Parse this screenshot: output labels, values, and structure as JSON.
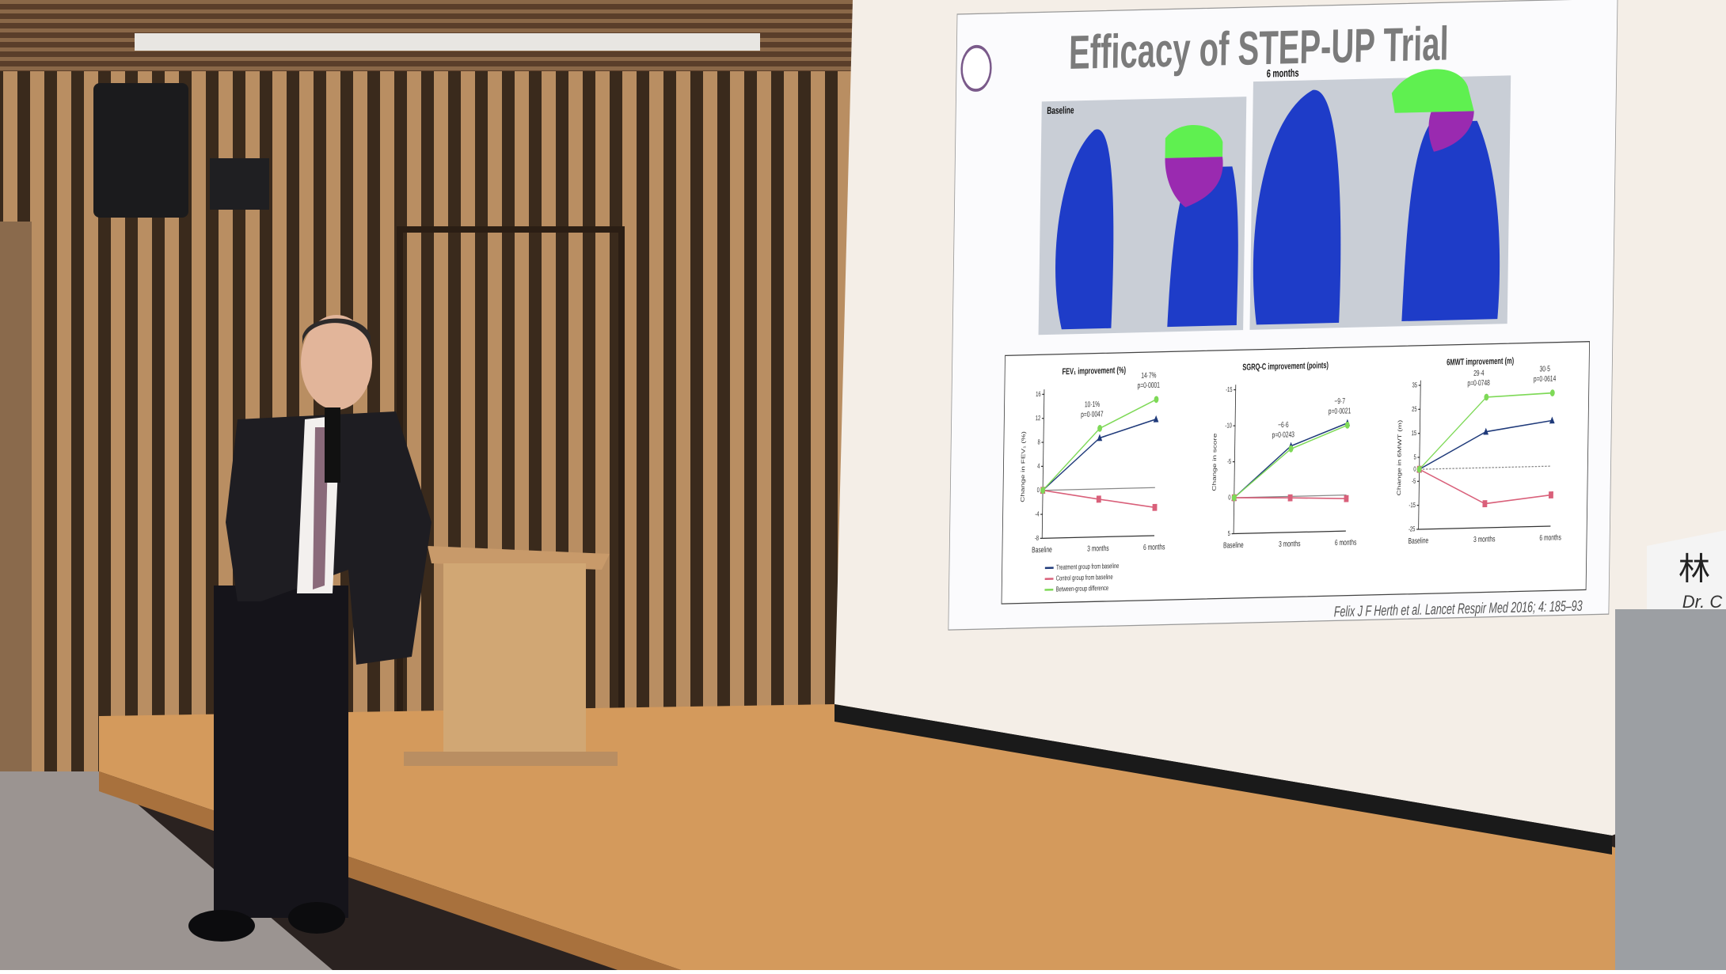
{
  "slide": {
    "title": "Efficacy of STEP-UP Trial",
    "image_labels": {
      "baseline": "Baseline",
      "followup": "6 months"
    },
    "legend": [
      {
        "name": "Treatment group from baseline",
        "color": "#1f3a7a"
      },
      {
        "name": "Control group from baseline",
        "color": "#d9607a"
      },
      {
        "name": "Between-group difference",
        "color": "#7ed957"
      }
    ],
    "charts": [
      {
        "title": "FEV₁ improvement (%)",
        "ylabel": "Change in FEV₁ (%)",
        "categories": [
          "Baseline",
          "3 months",
          "6 months"
        ],
        "ylim": [
          -8,
          16
        ],
        "yticks": [
          16,
          12,
          8,
          4,
          0,
          -4,
          -8
        ],
        "series": [
          {
            "values": [
              0,
              8.5,
              11.4
            ]
          },
          {
            "values": [
              0,
              -1.7,
              -3.3
            ]
          },
          {
            "values": [
              0,
              10.1,
              14.7
            ]
          }
        ],
        "annotations": [
          [
            "10·1%",
            "p=0·0047"
          ],
          [
            "14·7%",
            "p=0·0001"
          ]
        ]
      },
      {
        "title": "SGRQ-C improvement (points)",
        "ylabel": "Change in score",
        "categories": [
          "Baseline",
          "3 months",
          "6 months"
        ],
        "ylim": [
          5,
          -15
        ],
        "yticks": [
          -15,
          -10,
          -5,
          0,
          5
        ],
        "series": [
          {
            "values": [
              0,
              -7,
              -10
            ]
          },
          {
            "values": [
              0,
              0.2,
              0.5
            ]
          },
          {
            "values": [
              0,
              -6.6,
              -9.7
            ]
          }
        ],
        "annotations": [
          [
            "−6·6",
            "p=0·0243"
          ],
          [
            "−9·7",
            "p=0·0021"
          ]
        ]
      },
      {
        "title": "6MWT improvement (m)",
        "ylabel": "Change in 6MWT (m)",
        "categories": [
          "Baseline",
          "3 months",
          "6 months"
        ],
        "ylim": [
          -25,
          35
        ],
        "yticks": [
          35,
          25,
          15,
          5,
          0,
          -5,
          -15,
          -25
        ],
        "series": [
          {
            "values": [
              0,
              15,
              19
            ]
          },
          {
            "values": [
              0,
              -15,
              -12
            ]
          },
          {
            "values": [
              0,
              29.4,
              30.5
            ]
          }
        ],
        "annotations": [
          [
            "29·4",
            "p=0·0748"
          ],
          [
            "30·5",
            "p=0·0614"
          ]
        ]
      }
    ],
    "citation": "Felix J F Herth et al. Lancet Respir Med 2016; 4: 185–93"
  },
  "name_plate": {
    "name": "林",
    "title": "Dr. C"
  }
}
